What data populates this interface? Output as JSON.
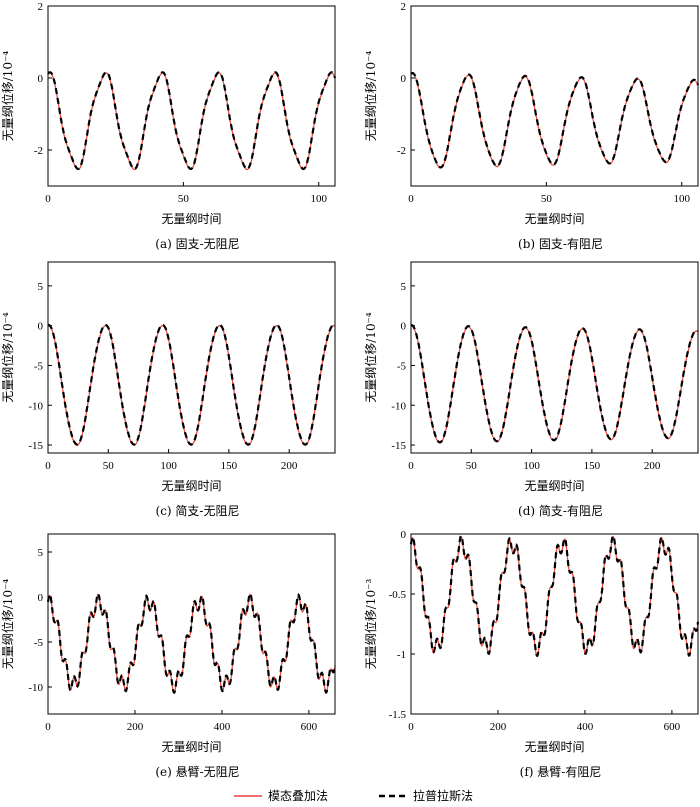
{
  "legend": {
    "modal_label": "模态叠加法",
    "laplace_label": "拉普拉斯法",
    "modal_color": "#e8443a",
    "laplace_color": "#000000",
    "laplace_style": "dashed"
  },
  "chart_data": [
    {
      "type": "line",
      "caption": "(a) 固支-无阻尼",
      "xlabel": "无量纲时间",
      "ylabel": "无量纲位移/10⁻⁴",
      "xlim": [
        0,
        106
      ],
      "ylim": [
        -3,
        2
      ],
      "xticks": [
        0,
        50,
        100
      ],
      "yticks": [
        -2,
        0,
        2
      ],
      "wave": {
        "mean": -1.2,
        "amp": 1.3,
        "period": 20.8,
        "damping": 0,
        "ripple": 0.12,
        "ripple_freq": 3
      },
      "series": [
        {
          "name": "模态叠加法"
        },
        {
          "name": "拉普拉斯法"
        }
      ]
    },
    {
      "type": "line",
      "caption": "(b) 固支-有阻尼",
      "xlabel": "无量纲时间",
      "ylabel": "无量纲位移/10⁻⁴",
      "xlim": [
        0,
        106
      ],
      "ylim": [
        -3,
        2
      ],
      "xticks": [
        0,
        50,
        100
      ],
      "yticks": [
        -2,
        0,
        2
      ],
      "wave": {
        "mean": -1.2,
        "amp": 1.3,
        "period": 20.8,
        "damping": 0.0015,
        "ripple": 0.08,
        "ripple_freq": 3
      },
      "series": [
        {
          "name": "模态叠加法"
        },
        {
          "name": "拉普拉斯法"
        }
      ]
    },
    {
      "type": "line",
      "caption": "(c) 简支-无阻尼",
      "xlabel": "无量纲时间",
      "ylabel": "无量纲位移/10⁻⁴",
      "xlim": [
        0,
        238
      ],
      "ylim": [
        -16,
        8
      ],
      "xticks": [
        0,
        50,
        100,
        150,
        200
      ],
      "yticks": [
        -15,
        -10,
        -5,
        0,
        5
      ],
      "wave": {
        "mean": -7.5,
        "amp": 7.5,
        "period": 47.3,
        "damping": 0,
        "ripple": 0.15,
        "ripple_freq": 3
      },
      "series": [
        {
          "name": "模态叠加法"
        },
        {
          "name": "拉普拉斯法"
        }
      ]
    },
    {
      "type": "line",
      "caption": "(d) 简支-有阻尼",
      "xlabel": "无量纲时间",
      "ylabel": "无量纲位移/10⁻⁴",
      "xlim": [
        0,
        238
      ],
      "ylim": [
        -16,
        8
      ],
      "xticks": [
        0,
        50,
        100,
        150,
        200
      ],
      "yticks": [
        -15,
        -10,
        -5,
        0,
        5
      ],
      "wave": {
        "mean": -7.4,
        "amp": 7.4,
        "period": 47.3,
        "damping": 0.0004,
        "ripple": 0.1,
        "ripple_freq": 3
      },
      "series": [
        {
          "name": "模态叠加法"
        },
        {
          "name": "拉普拉斯法"
        }
      ]
    },
    {
      "type": "line",
      "caption": "(e) 悬臂-无阻尼",
      "xlabel": "无量纲时间",
      "ylabel": "无量纲位移/10⁻⁴",
      "xlim": [
        0,
        660
      ],
      "ylim": [
        -13,
        7
      ],
      "xticks": [
        0,
        200,
        400,
        600
      ],
      "yticks": [
        -10,
        -5,
        0,
        5
      ],
      "wave": {
        "mean": -5.2,
        "amp": 4.6,
        "period": 116,
        "damping": 0,
        "ripple": 0.9,
        "ripple_freq": 6.3
      },
      "series": [
        {
          "name": "模态叠加法"
        },
        {
          "name": "拉普拉斯法"
        }
      ]
    },
    {
      "type": "line",
      "caption": "(f) 悬臂-有阻尼",
      "xlabel": "无量纲时间",
      "ylabel": "无量纲位移/10⁻³",
      "xlim": [
        0,
        660
      ],
      "ylim": [
        -1.5,
        0
      ],
      "xticks": [
        0,
        200,
        400,
        600
      ],
      "yticks": [
        -1.5,
        -1.0,
        -0.5,
        0
      ],
      "wave": {
        "mean": -0.52,
        "amp": 0.43,
        "period": 116,
        "damping": 0,
        "ripple": 0.07,
        "ripple_freq": 6.3
      },
      "series": [
        {
          "name": "模态叠加法"
        },
        {
          "name": "拉普拉斯法"
        }
      ]
    }
  ]
}
